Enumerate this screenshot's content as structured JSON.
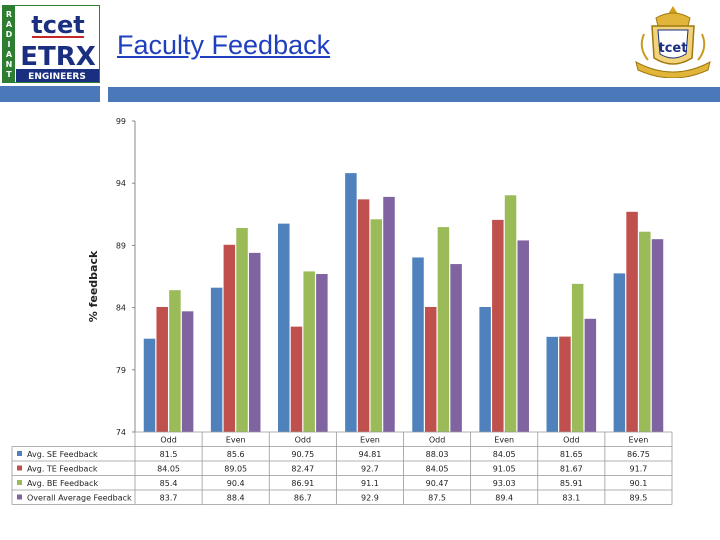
{
  "header": {
    "title": "Faculty Feedback",
    "logo_left": {
      "line1": "tcet",
      "line2": "ETRX",
      "line3": "ENGINEERS",
      "side": "RADIANT"
    },
    "logo_right": {
      "text": "tcet"
    }
  },
  "colors": {
    "band": "#4a78b8",
    "title": "#1f3fbf"
  },
  "chart_data": {
    "type": "bar",
    "ylabel": "% feedback",
    "ylim": [
      74,
      99
    ],
    "yticks": [
      74,
      79,
      84,
      89,
      94,
      99
    ],
    "categories": [
      "Odd",
      "Even",
      "Odd",
      "Even",
      "Odd",
      "Even",
      "Odd",
      "Even"
    ],
    "series": [
      {
        "name": "Avg. SE Feedback",
        "color": "#4f81bd",
        "values": [
          81.5,
          85.6,
          90.75,
          94.81,
          88.03,
          84.05,
          81.65,
          86.75
        ],
        "labels": [
          "81.5",
          "85.6",
          "90.75",
          "94.81",
          "88.03",
          "84.05",
          "81.65",
          "86.75"
        ]
      },
      {
        "name": "Avg. TE Feedback",
        "color": "#c0504d",
        "values": [
          84.05,
          89.05,
          82.47,
          92.7,
          84.05,
          91.05,
          81.67,
          91.7
        ],
        "labels": [
          "84.05",
          "89.05",
          "82.47",
          "92.7",
          "84.05",
          "91.05",
          "81.67",
          "91.7"
        ]
      },
      {
        "name": "Avg. BE Feedback",
        "color": "#9bbb59",
        "values": [
          85.4,
          90.4,
          86.91,
          91.1,
          90.47,
          93.03,
          85.91,
          90.1
        ],
        "labels": [
          "85.4",
          "90.4",
          "86.91",
          "91.1",
          "90.47",
          "93.03",
          "85.91",
          "90.1"
        ]
      },
      {
        "name": "Overall Average Feedback",
        "color": "#8064a2",
        "values": [
          83.7,
          88.4,
          86.7,
          92.9,
          87.5,
          89.4,
          83.1,
          89.5
        ],
        "labels": [
          "83.7",
          "88.4",
          "86.7",
          "92.9",
          "87.5",
          "89.4",
          "83.1",
          "89.5"
        ]
      }
    ],
    "legend": "table-left",
    "grid": false
  }
}
